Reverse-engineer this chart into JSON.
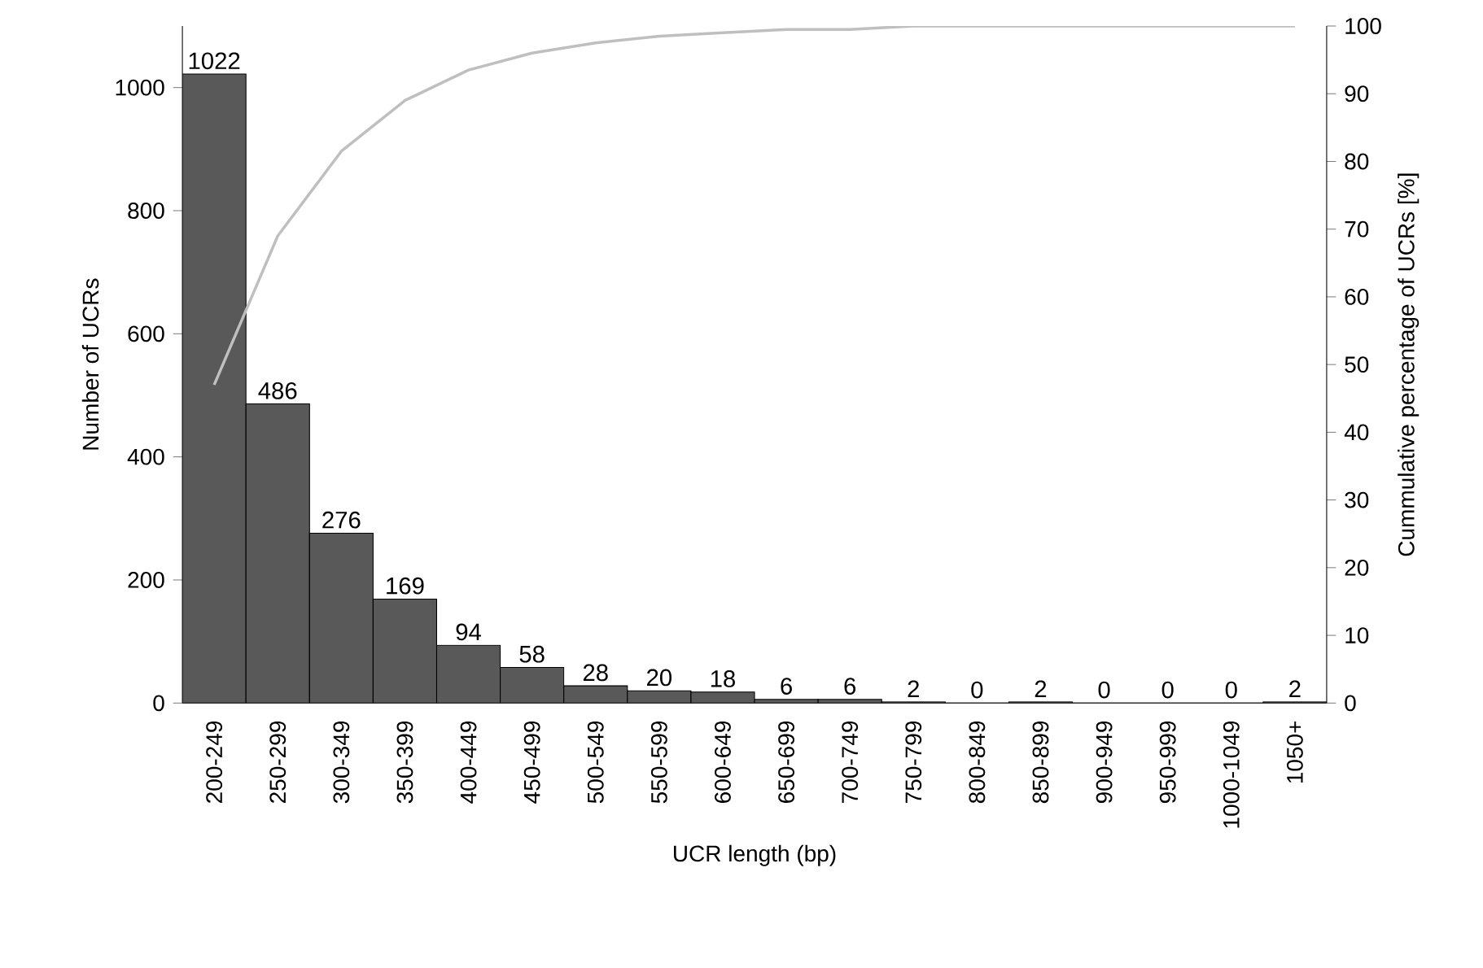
{
  "chart_data": {
    "type": "bar",
    "xlabel": "UCR length (bp)",
    "ylabel": "Number of UCRs",
    "y2label": "Cummulative percentage of UCRs [%]",
    "categories": [
      "200-249",
      "250-299",
      "300-349",
      "350-399",
      "400-449",
      "450-499",
      "500-549",
      "550-599",
      "600-649",
      "650-699",
      "700-749",
      "750-799",
      "800-849",
      "850-899",
      "900-949",
      "950-999",
      "1000-1049",
      "1050+"
    ],
    "series": [
      {
        "color": "#595959",
        "values": [
          1022,
          486,
          276,
          169,
          94,
          58,
          28,
          20,
          18,
          6,
          6,
          2,
          0,
          2,
          0,
          0,
          0,
          2
        ],
        "value_labels": [
          "1022",
          "486",
          "276",
          "169",
          "94",
          "58",
          "28",
          "20",
          "18",
          "6",
          "6",
          "2",
          "0",
          "2",
          "0",
          "0",
          "0",
          "2"
        ]
      },
      {
        "type": "line",
        "axis": "y2",
        "color": "#bfbfbf",
        "marker": "none",
        "values": [
          47,
          69,
          81.5,
          89,
          93.5,
          96,
          97.5,
          98.5,
          99,
          99.5,
          99.5,
          100,
          100,
          100,
          100,
          100,
          100,
          100
        ]
      }
    ],
    "ylim": [
      0,
      1100
    ],
    "yticks": [
      0,
      200,
      400,
      600,
      800,
      1000
    ],
    "y2lim": [
      0,
      100
    ],
    "y2ticks": [
      0,
      10,
      20,
      30,
      40,
      50,
      60,
      70,
      80,
      90,
      100
    ],
    "grid": false
  }
}
